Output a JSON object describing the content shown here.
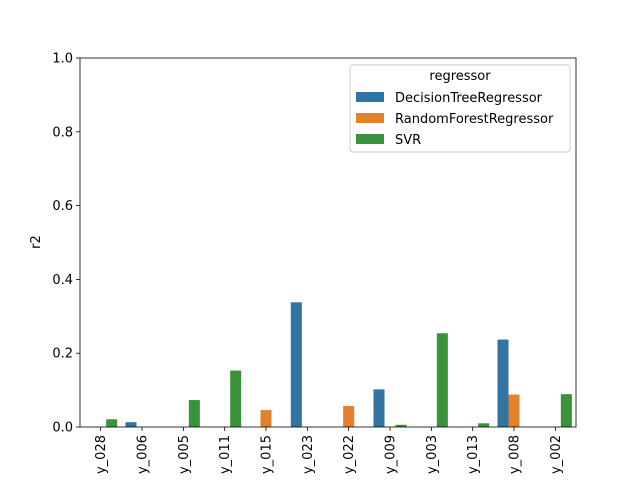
{
  "chart_data": {
    "type": "bar",
    "ylabel": "r2",
    "xlabel": "",
    "ylim": [
      0,
      1.0
    ],
    "yticks": [
      "0.0",
      "0.2",
      "0.4",
      "0.6",
      "0.8",
      "1.0"
    ],
    "categories": [
      "y_028",
      "y_006",
      "y_005",
      "y_011",
      "y_015",
      "y_023",
      "y_022",
      "y_009",
      "y_003",
      "y_013",
      "y_008",
      "y_002"
    ],
    "legend": {
      "title": "regressor",
      "placement": "top-right"
    },
    "series": [
      {
        "name": "DecisionTreeRegressor",
        "color": "#3274a1",
        "values": [
          0,
          0.013,
          0,
          0,
          0,
          0.338,
          0,
          0.102,
          0,
          0,
          0.237,
          0
        ]
      },
      {
        "name": "RandomForestRegressor",
        "color": "#e1812c",
        "values": [
          0,
          0,
          0,
          0,
          0.046,
          0,
          0.057,
          0,
          0,
          0,
          0.088,
          0
        ]
      },
      {
        "name": "SVR",
        "color": "#3a923a",
        "values": [
          0.021,
          0,
          0.073,
          0.153,
          0,
          0,
          0,
          0.006,
          0.254,
          0.01,
          0,
          0.089
        ]
      }
    ]
  }
}
